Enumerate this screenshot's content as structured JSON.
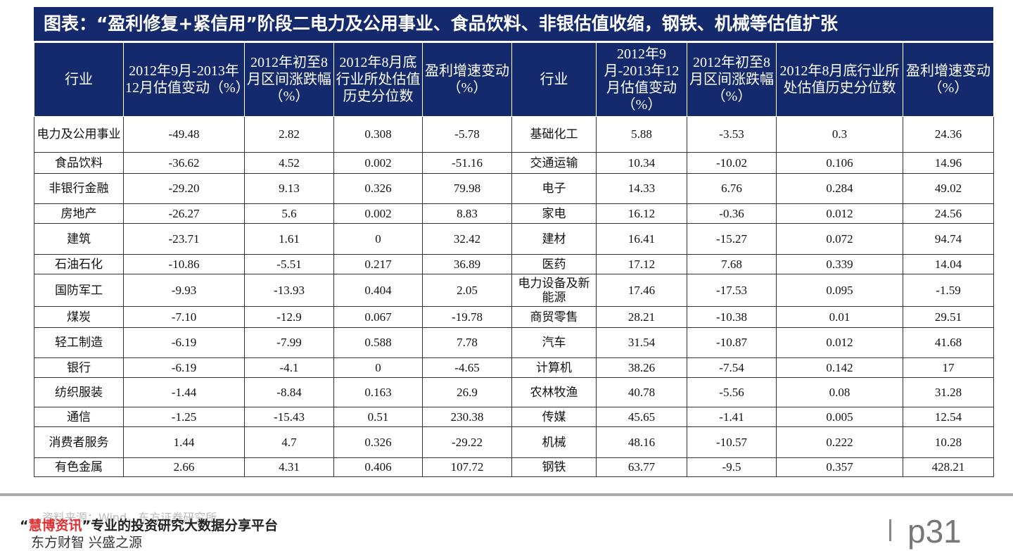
{
  "header": {
    "title": "图表：“盈利修复+紧信用”阶段二电力及公用事业、食品饮料、非银估值收缩，钢铁、机械等估值扩张"
  },
  "table": {
    "columns": [
      "行业",
      "2012年9月-2013年12月估值变动（%）",
      "2012年初至8月区间涨跌幅（%）",
      "2012年8月底行业所处估值历史分位数",
      "盈利增速变动（%）",
      "行业",
      "2012年9月-2013年12月估值变动（%）",
      "2012年初至8月区间涨跌幅（%）",
      "2012年8月底行业所处估值历史分位数",
      "盈利增速变动（%）"
    ],
    "rows": [
      [
        "电力及公用事业",
        "-49.48",
        "2.82",
        "0.308",
        "-5.78",
        "基础化工",
        "5.88",
        "-3.53",
        "0.3",
        "24.36"
      ],
      [
        "食品饮料",
        "-36.62",
        "4.52",
        "0.002",
        "-51.16",
        "交通运输",
        "10.34",
        "-10.02",
        "0.106",
        "14.96"
      ],
      [
        "非银行金融",
        "-29.20",
        "9.13",
        "0.326",
        "79.98",
        "电子",
        "14.33",
        "6.76",
        "0.284",
        "49.02"
      ],
      [
        "房地产",
        "-26.27",
        "5.6",
        "0.002",
        "8.83",
        "家电",
        "16.12",
        "-0.36",
        "0.012",
        "24.56"
      ],
      [
        "建筑",
        "-23.71",
        "1.61",
        "0",
        "32.42",
        "建材",
        "16.41",
        "-15.27",
        "0.072",
        "94.74"
      ],
      [
        "石油石化",
        "-10.86",
        "-5.51",
        "0.217",
        "36.89",
        "医药",
        "17.12",
        "7.68",
        "0.339",
        "14.04"
      ],
      [
        "国防军工",
        "-9.93",
        "-13.93",
        "0.404",
        "2.05",
        "电力设备及新能源",
        "17.46",
        "-17.53",
        "0.095",
        "-1.59"
      ],
      [
        "煤炭",
        "-7.10",
        "-12.9",
        "0.067",
        "-19.78",
        "商贸零售",
        "28.21",
        "-10.38",
        "0.01",
        "29.51"
      ],
      [
        "轻工制造",
        "-6.19",
        "-7.99",
        "0.588",
        "7.78",
        "汽车",
        "31.54",
        "-10.87",
        "0.012",
        "41.68"
      ],
      [
        "银行",
        "-6.19",
        "-4.1",
        "0",
        "-4.65",
        "计算机",
        "38.26",
        "-7.54",
        "0.142",
        "17"
      ],
      [
        "纺织服装",
        "-1.44",
        "-8.84",
        "0.163",
        "26.9",
        "农林牧渔",
        "40.78",
        "-5.56",
        "0.08",
        "31.28"
      ],
      [
        "通信",
        "-1.25",
        "-15.43",
        "0.51",
        "230.38",
        "传媒",
        "45.65",
        "-1.41",
        "0.005",
        "12.54"
      ],
      [
        "消费者服务",
        "1.44",
        "4.7",
        "0.326",
        "-29.22",
        "机械",
        "48.16",
        "-10.57",
        "0.222",
        "10.28"
      ],
      [
        "有色金属",
        "2.66",
        "4.31",
        "0.406",
        "107.72",
        "钢铁",
        "63.77",
        "-9.5",
        "0.357",
        "428.21"
      ]
    ]
  },
  "footer": {
    "source": "资料来源：Wind，东方证券研究所",
    "slogan": [
      "“",
      "慧博资讯",
      "”专业的投资研究大数据分享平台"
    ],
    "motto": "东方财智 兴盛之源",
    "page": "p31"
  }
}
